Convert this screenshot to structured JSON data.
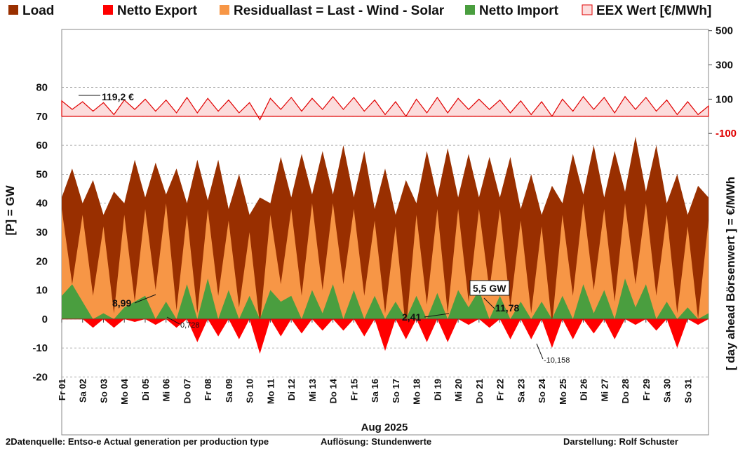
{
  "chart_data": {
    "type": "area",
    "legend": [
      "Load",
      "Netto Export",
      "Residuallast  =  Last - Wind - Solar",
      "Netto Import",
      "EEX Wert [€/MWh]"
    ],
    "ylabel": "[P]  =  GW",
    "y2label": "[ day ahead Börsenwert ]  = €/MWh",
    "xlabel": "Aug 2025",
    "footer": [
      "2Datenquelle: Entso-e  Actual generation per production type",
      "Auflösung: Stundenwerte",
      "Darstellung:  Rolf Schuster"
    ],
    "annotations": [
      "119,2 €",
      "8,99",
      "0,728",
      "2,41",
      "5,5 GW",
      "11,78",
      "-10,158"
    ],
    "xlim": [
      1,
      32
    ],
    "xticks": [
      {
        "value": 1,
        "label": "Fr 01"
      },
      {
        "value": 2,
        "label": "Sa 02"
      },
      {
        "value": 3,
        "label": "So 03"
      },
      {
        "value": 4,
        "label": "Mo 04"
      },
      {
        "value": 5,
        "label": "Di 05"
      },
      {
        "value": 6,
        "label": "Mi 06"
      },
      {
        "value": 7,
        "label": "Do 07"
      },
      {
        "value": 8,
        "label": "Fr 08"
      },
      {
        "value": 9,
        "label": "Sa 09"
      },
      {
        "value": 10,
        "label": "So 10"
      },
      {
        "value": 11,
        "label": "Mo 11"
      },
      {
        "value": 12,
        "label": "Di 12"
      },
      {
        "value": 13,
        "label": "Mi 13"
      },
      {
        "value": 14,
        "label": "Do 14"
      },
      {
        "value": 15,
        "label": "Fr 15"
      },
      {
        "value": 16,
        "label": "Sa 16"
      },
      {
        "value": 17,
        "label": "So 17"
      },
      {
        "value": 18,
        "label": "Mo 18"
      },
      {
        "value": 19,
        "label": "Di 19"
      },
      {
        "value": 20,
        "label": "Mi 20"
      },
      {
        "value": 21,
        "label": "Do 21"
      },
      {
        "value": 22,
        "label": "Fr 22"
      },
      {
        "value": 23,
        "label": "Sa 23"
      },
      {
        "value": 24,
        "label": "So 24"
      },
      {
        "value": 25,
        "label": "Mo 25"
      },
      {
        "value": 26,
        "label": "Di 26"
      },
      {
        "value": 27,
        "label": "Mi 27"
      },
      {
        "value": 28,
        "label": "Do 28"
      },
      {
        "value": 29,
        "label": "Fr 29"
      },
      {
        "value": 30,
        "label": "Sa 30"
      },
      {
        "value": 31,
        "label": "So 31"
      }
    ],
    "ylim": [
      -40,
      100
    ],
    "yticks": [
      -20,
      -10,
      0,
      10,
      20,
      30,
      40,
      50,
      60,
      70,
      80
    ],
    "y2lim": [
      -1860,
      507
    ],
    "y2ticks": [
      -100,
      100,
      300,
      500
    ],
    "negative_tick_color": "#e00000",
    "grid": true,
    "x": [
      1,
      1.5,
      2,
      2.5,
      3,
      3.5,
      4,
      4.5,
      5,
      5.5,
      6,
      6.5,
      7,
      7.5,
      8,
      8.5,
      9,
      9.5,
      10,
      10.5,
      11,
      11.5,
      12,
      12.5,
      13,
      13.5,
      14,
      14.5,
      15,
      15.5,
      16,
      16.5,
      17,
      17.5,
      18,
      18.5,
      19,
      19.5,
      20,
      20.5,
      21,
      21.5,
      22,
      22.5,
      23,
      23.5,
      24,
      24.5,
      25,
      25.5,
      26,
      26.5,
      27,
      27.5,
      28,
      28.5,
      29,
      29.5,
      30,
      30.5,
      31,
      31.5,
      32
    ],
    "series": [
      {
        "name": "Load",
        "color": "#992f00",
        "values": [
          42,
          52,
          40,
          48,
          36,
          44,
          40,
          55,
          42,
          54,
          43,
          52,
          40,
          55,
          41,
          55,
          38,
          50,
          36,
          42,
          40,
          56,
          42,
          57,
          43,
          58,
          43,
          60,
          42,
          58,
          38,
          52,
          36,
          48,
          40,
          58,
          42,
          59,
          42,
          57,
          42,
          56,
          42,
          56,
          38,
          50,
          36,
          46,
          40,
          57,
          43,
          60,
          42,
          58,
          44,
          63,
          44,
          60,
          40,
          50,
          36,
          46,
          42
        ]
      },
      {
        "name": "Residuallast",
        "color": "#f79646",
        "values": [
          38,
          12,
          36,
          8,
          32,
          2,
          36,
          6,
          38,
          10,
          40,
          3,
          36,
          2,
          38,
          8,
          34,
          4,
          30,
          -2,
          36,
          12,
          38,
          8,
          40,
          10,
          40,
          12,
          38,
          8,
          34,
          2,
          32,
          -4,
          36,
          5,
          38,
          2,
          38,
          6,
          38,
          10,
          38,
          4,
          34,
          2,
          32,
          -2,
          36,
          8,
          40,
          10,
          38,
          6,
          40,
          12,
          40,
          8,
          36,
          2,
          32,
          0,
          34
        ]
      },
      {
        "name": "Netto Import",
        "color": "#4a9e3f",
        "values": [
          8,
          12,
          6,
          0,
          2,
          0,
          4,
          6,
          8,
          0,
          6,
          0,
          12,
          0,
          14,
          0,
          10,
          0,
          8,
          0,
          10,
          6,
          8,
          0,
          10,
          2,
          12,
          0,
          10,
          0,
          8,
          0,
          6,
          0,
          8,
          0,
          9,
          0,
          10,
          4,
          10,
          0,
          8,
          0,
          6,
          0,
          6,
          0,
          8,
          0,
          12,
          2,
          10,
          0,
          14,
          4,
          12,
          0,
          6,
          0,
          4,
          0,
          2
        ]
      },
      {
        "name": "Netto Export",
        "color": "#ff0000",
        "values": [
          0,
          0,
          0,
          -3,
          0,
          -3,
          0,
          -1,
          0,
          -2,
          0,
          -3,
          0,
          -8,
          0,
          -6,
          0,
          -7,
          0,
          -12,
          0,
          -6,
          0,
          -5,
          0,
          -4,
          0,
          -4,
          0,
          -6,
          0,
          -11,
          0,
          -7,
          0,
          -8,
          0,
          -8,
          0,
          -2,
          0,
          -3,
          0,
          -7,
          0,
          -7,
          0,
          -10,
          0,
          -7,
          0,
          -5,
          0,
          -7,
          0,
          -2,
          0,
          -4,
          0,
          -10,
          0,
          -2,
          0
        ]
      },
      {
        "name": "EEX Wert",
        "color": "#e00000",
        "fill": "#fcdcdc",
        "axis": "y2",
        "values": [
          90,
          40,
          85,
          30,
          80,
          10,
          95,
          40,
          100,
          30,
          95,
          20,
          110,
          20,
          105,
          30,
          95,
          20,
          80,
          -20,
          105,
          40,
          110,
          30,
          105,
          40,
          115,
          40,
          110,
          30,
          95,
          10,
          85,
          0,
          100,
          20,
          110,
          20,
          105,
          40,
          100,
          40,
          95,
          20,
          90,
          10,
          85,
          0,
          100,
          30,
          115,
          40,
          110,
          20,
          115,
          40,
          110,
          30,
          95,
          10,
          85,
          10,
          60
        ]
      }
    ]
  }
}
